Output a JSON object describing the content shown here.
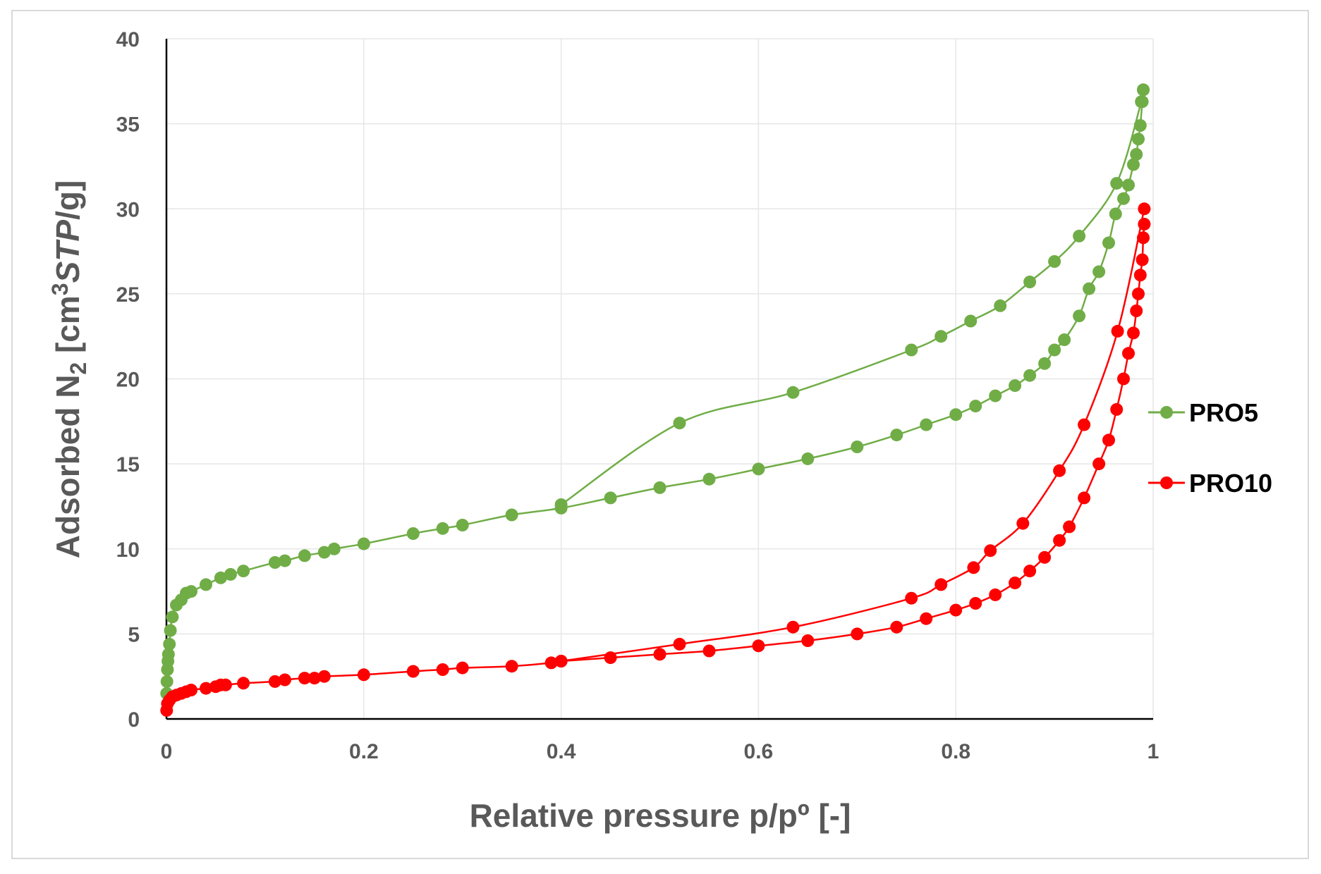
{
  "chart_data": {
    "type": "scatter",
    "title": "",
    "xlabel": "Relative pressure p/pº [-]",
    "ylabel": "Adsorbed N₂ [cm³STP/g]",
    "ylabel_parts": {
      "pre": "Adsorbed N",
      "sub": "2",
      "mid": " [cm",
      "sup": "3",
      "ital": "STP",
      "post": "/g]"
    },
    "xlim": [
      0,
      1
    ],
    "ylim": [
      0,
      40
    ],
    "x_ticks": [
      0,
      0.2,
      0.4,
      0.6,
      0.8,
      1
    ],
    "x_tick_labels": [
      "0",
      "0.2",
      "0.4",
      "0.6",
      "0.8",
      "1"
    ],
    "y_ticks": [
      0,
      5,
      10,
      15,
      20,
      25,
      30,
      35,
      40
    ],
    "y_tick_labels": [
      "0",
      "5",
      "10",
      "15",
      "20",
      "25",
      "30",
      "35",
      "40"
    ],
    "grid": true,
    "legend_position": "right",
    "series": [
      {
        "name": "PRO5",
        "color": "#70ad47",
        "adsorption": {
          "x": [
            0.0002,
            0.0005,
            0.001,
            0.0015,
            0.002,
            0.003,
            0.004,
            0.006,
            0.01,
            0.015,
            0.02,
            0.025,
            0.04,
            0.055,
            0.065,
            0.078,
            0.11,
            0.12,
            0.14,
            0.16,
            0.17,
            0.2,
            0.25,
            0.28,
            0.3,
            0.35,
            0.4,
            0.45,
            0.5,
            0.55,
            0.6,
            0.65,
            0.7,
            0.74,
            0.77,
            0.8,
            0.82,
            0.84,
            0.86,
            0.875,
            0.89,
            0.9,
            0.91,
            0.925,
            0.935,
            0.945,
            0.955,
            0.962,
            0.97,
            0.975,
            0.98,
            0.983,
            0.985,
            0.987,
            0.989,
            0.99
          ],
          "y": [
            1.5,
            2.2,
            2.9,
            3.4,
            3.8,
            4.4,
            5.2,
            6.0,
            6.7,
            7.0,
            7.4,
            7.5,
            7.9,
            8.3,
            8.5,
            8.7,
            9.2,
            9.3,
            9.6,
            9.8,
            10.0,
            10.3,
            10.9,
            11.2,
            11.4,
            12.0,
            12.4,
            13.0,
            13.6,
            14.1,
            14.7,
            15.3,
            16.0,
            16.7,
            17.3,
            17.9,
            18.4,
            19.0,
            19.6,
            20.2,
            20.9,
            21.7,
            22.3,
            23.7,
            25.3,
            26.3,
            28.0,
            29.7,
            30.6,
            31.4,
            32.6,
            33.2,
            34.1,
            34.9,
            36.3,
            37.0
          ]
        },
        "desorption": {
          "x": [
            0.99,
            0.988,
            0.963,
            0.925,
            0.9,
            0.875,
            0.845,
            0.815,
            0.785,
            0.755,
            0.635,
            0.52,
            0.4
          ],
          "y": [
            37.0,
            36.3,
            31.5,
            28.4,
            26.9,
            25.7,
            24.3,
            23.4,
            22.5,
            21.7,
            19.2,
            17.4,
            12.6
          ]
        }
      },
      {
        "name": "PRO10",
        "color": "#ff0000",
        "adsorption": {
          "x": [
            0.0002,
            0.001,
            0.003,
            0.006,
            0.01,
            0.015,
            0.02,
            0.025,
            0.04,
            0.05,
            0.055,
            0.06,
            0.078,
            0.11,
            0.12,
            0.14,
            0.15,
            0.16,
            0.2,
            0.25,
            0.28,
            0.3,
            0.35,
            0.39,
            0.4,
            0.45,
            0.5,
            0.55,
            0.6,
            0.65,
            0.7,
            0.74,
            0.77,
            0.8,
            0.82,
            0.84,
            0.86,
            0.875,
            0.89,
            0.905,
            0.915,
            0.93,
            0.945,
            0.955,
            0.963,
            0.97,
            0.975,
            0.98,
            0.983,
            0.985,
            0.987,
            0.989,
            0.99,
            0.991
          ],
          "y": [
            0.5,
            0.9,
            1.1,
            1.3,
            1.4,
            1.5,
            1.6,
            1.7,
            1.8,
            1.9,
            2.0,
            2.0,
            2.1,
            2.2,
            2.3,
            2.4,
            2.4,
            2.5,
            2.6,
            2.8,
            2.9,
            3.0,
            3.1,
            3.3,
            3.4,
            3.6,
            3.8,
            4.0,
            4.3,
            4.6,
            5.0,
            5.4,
            5.9,
            6.4,
            6.8,
            7.3,
            8.0,
            8.7,
            9.5,
            10.5,
            11.3,
            13.0,
            15.0,
            16.4,
            18.2,
            20.0,
            21.5,
            22.7,
            24.0,
            25.0,
            26.1,
            27.0,
            28.3,
            29.1
          ]
        },
        "desorption": {
          "x": [
            0.991,
            0.964,
            0.93,
            0.905,
            0.868,
            0.835,
            0.818,
            0.785,
            0.755,
            0.635,
            0.52,
            0.4
          ],
          "y": [
            30.0,
            22.8,
            17.3,
            14.6,
            11.5,
            9.9,
            8.9,
            7.9,
            7.1,
            5.4,
            4.4,
            3.4
          ]
        }
      }
    ]
  }
}
